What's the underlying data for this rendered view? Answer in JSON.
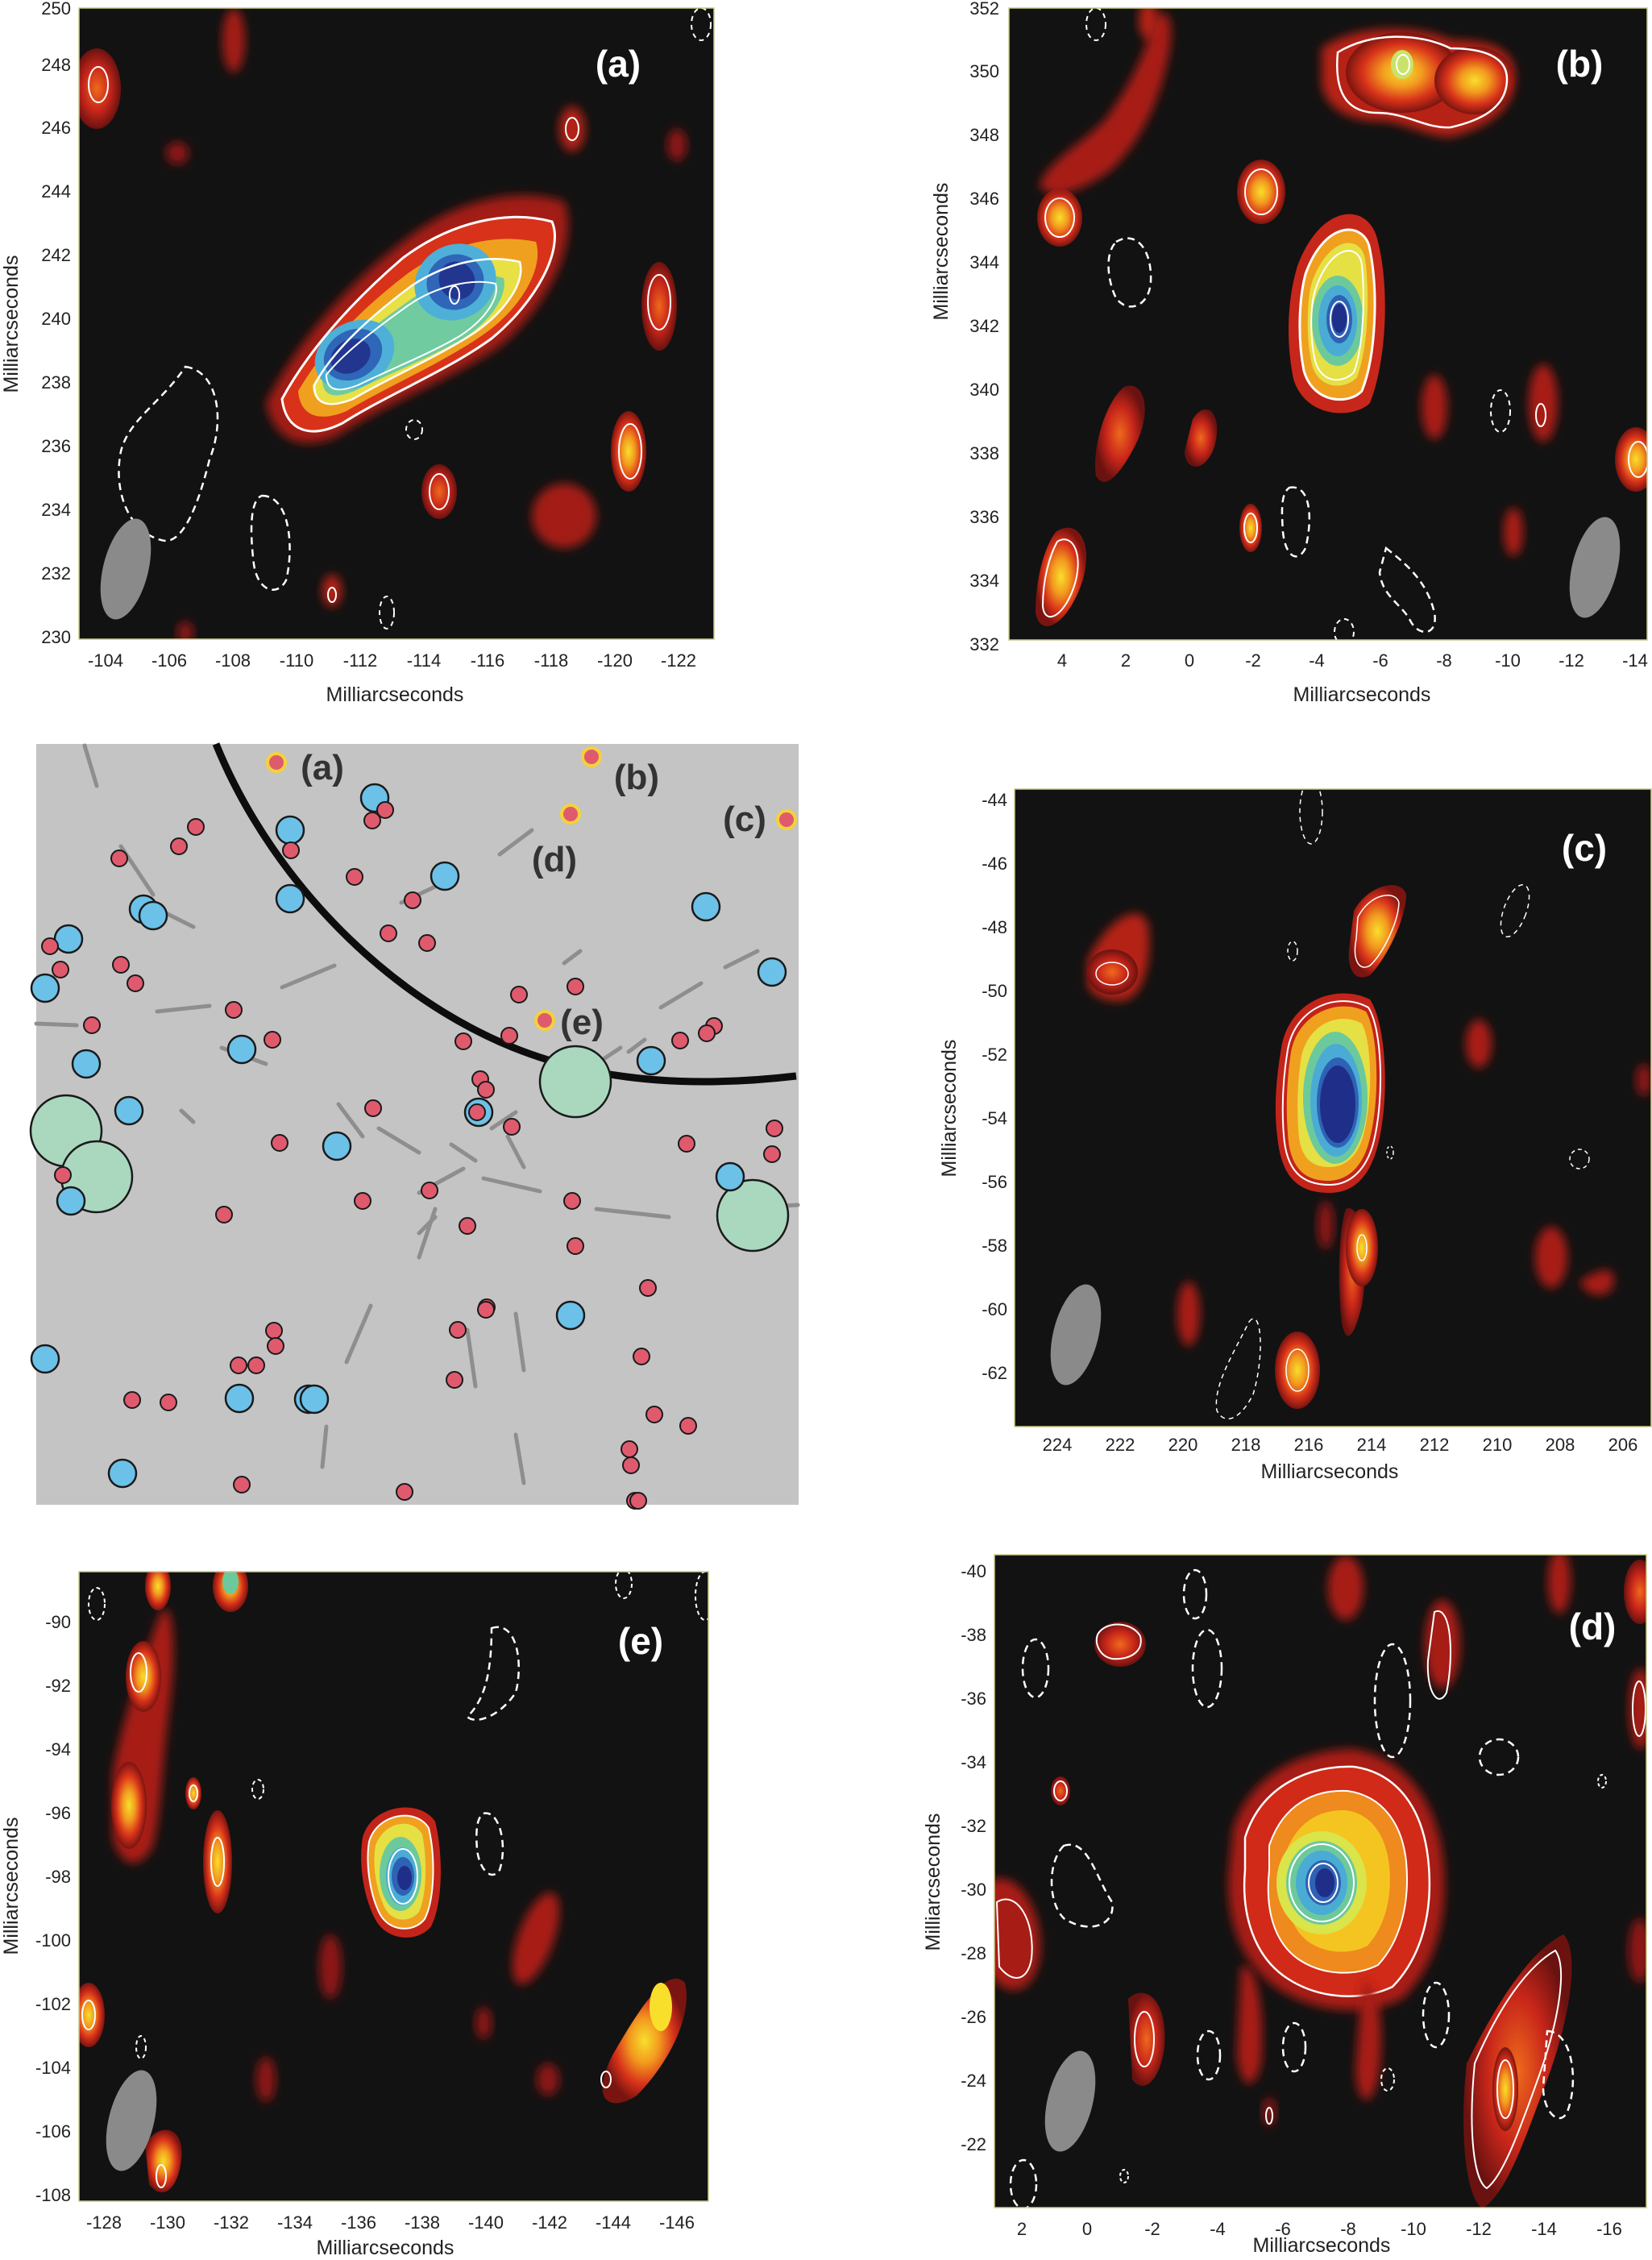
{
  "accent_colors": {
    "background": "#121212",
    "contour": "#ffffff",
    "beam": "#8a8a8a",
    "map_bg": "#c4c4c4",
    "red_marker": "#e05a6e",
    "blue_marker": "#6cc1e8",
    "green_marker": "#a9d8be",
    "yellow_ring": "#f3d23a"
  },
  "panels": [
    {
      "id": "a",
      "label": "(a)",
      "xlabel": "Milliarcseconds",
      "ylabel": "Milliarcseconds",
      "x_ticks": [
        "-104",
        "-106",
        "-108",
        "-110",
        "-112",
        "-114",
        "-116",
        "-118",
        "-120",
        "-122"
      ],
      "y_ticks": [
        "250",
        "248",
        "246",
        "244",
        "242",
        "240",
        "238",
        "236",
        "234",
        "232",
        "230"
      ]
    },
    {
      "id": "b",
      "label": "(b)",
      "xlabel": "Milliarcseconds",
      "ylabel": "Milliarcseconds",
      "x_ticks": [
        "4",
        "2",
        "0",
        "-2",
        "-4",
        "-6",
        "-8",
        "-10",
        "-12",
        "-14"
      ],
      "y_ticks": [
        "352",
        "350",
        "348",
        "346",
        "344",
        "342",
        "340",
        "338",
        "336",
        "334",
        "332"
      ]
    },
    {
      "id": "c",
      "label": "(c)",
      "xlabel": "Milliarcseconds",
      "ylabel": "Milliarcseconds",
      "x_ticks": [
        "224",
        "222",
        "220",
        "218",
        "216",
        "214",
        "212",
        "210",
        "208",
        "206"
      ],
      "y_ticks": [
        "-44",
        "-46",
        "-48",
        "-50",
        "-52",
        "-54",
        "-56",
        "-58",
        "-60",
        "-62"
      ]
    },
    {
      "id": "e",
      "label": "(e)",
      "xlabel": "Milliarcseconds",
      "ylabel": "Milliarcseconds",
      "x_ticks": [
        "-128",
        "-130",
        "-132",
        "-134",
        "-136",
        "-138",
        "-140",
        "-142",
        "-144",
        "-146"
      ],
      "y_ticks": [
        "-90",
        "-92",
        "-94",
        "-96",
        "-98",
        "-100",
        "-102",
        "-104",
        "-106",
        "-108"
      ]
    },
    {
      "id": "d",
      "label": "(d)",
      "xlabel": "Milliarcseconds",
      "ylabel": "Milliarcseconds",
      "x_ticks": [
        "2",
        "0",
        "-2",
        "-4",
        "-6",
        "-8",
        "-10",
        "-12",
        "-14",
        "-16"
      ],
      "y_ticks": [
        "-40",
        "-38",
        "-36",
        "-34",
        "-32",
        "-30",
        "-28",
        "-26",
        "-24",
        "-22"
      ]
    }
  ],
  "map": {
    "labels": [
      "(a)",
      "(b)",
      "(c)",
      "(d)",
      "(e)"
    ]
  }
}
